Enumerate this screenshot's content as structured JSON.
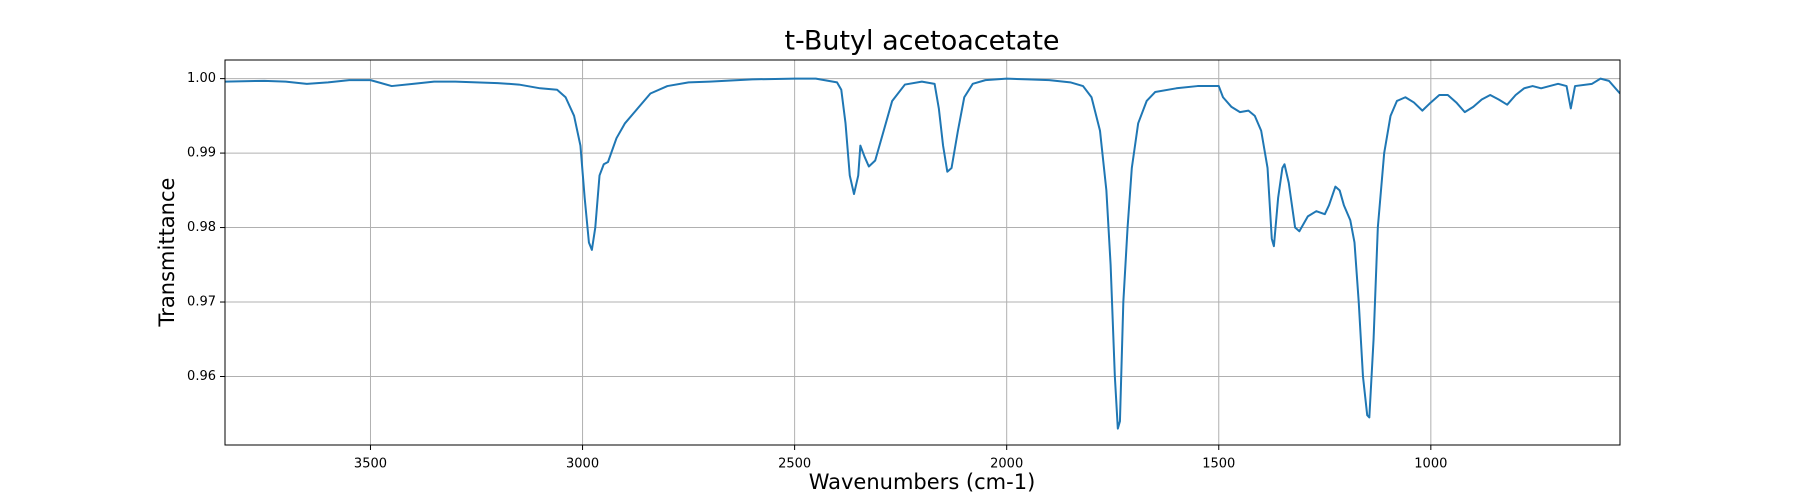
{
  "chart_data": {
    "type": "line",
    "title": "t-Butyl acetoacetate",
    "xlabel": "Wavenumbers (cm-1)",
    "ylabel": "Transmittance",
    "color": "#1f77b4",
    "grid": true,
    "xlim": [
      3843,
      554
    ],
    "ylim": [
      0.9508,
      1.0025
    ],
    "xticks": [
      3500,
      3000,
      2500,
      2000,
      1500,
      1000
    ],
    "yticks": [
      0.96,
      0.97,
      0.98,
      0.99,
      {
        "value": 1,
        "label": "1.00"
      }
    ],
    "x": [
      3843,
      3750,
      3700,
      3650,
      3600,
      3550,
      3500,
      3450,
      3400,
      3350,
      3300,
      3250,
      3200,
      3150,
      3100,
      3060,
      3040,
      3020,
      3005,
      2995,
      2985,
      2978,
      2970,
      2960,
      2950,
      2940,
      2920,
      2900,
      2870,
      2840,
      2800,
      2750,
      2700,
      2600,
      2500,
      2450,
      2400,
      2390,
      2380,
      2370,
      2360,
      2350,
      2345,
      2335,
      2325,
      2310,
      2290,
      2270,
      2240,
      2200,
      2170,
      2160,
      2150,
      2140,
      2130,
      2115,
      2100,
      2080,
      2050,
      2000,
      1950,
      1900,
      1850,
      1820,
      1800,
      1780,
      1765,
      1755,
      1745,
      1738,
      1733,
      1725,
      1715,
      1705,
      1690,
      1670,
      1650,
      1600,
      1550,
      1500,
      1490,
      1470,
      1450,
      1430,
      1415,
      1400,
      1385,
      1375,
      1370,
      1360,
      1350,
      1345,
      1335,
      1320,
      1310,
      1290,
      1270,
      1250,
      1240,
      1225,
      1215,
      1205,
      1190,
      1180,
      1170,
      1160,
      1150,
      1145,
      1135,
      1125,
      1110,
      1095,
      1080,
      1060,
      1040,
      1020,
      1000,
      980,
      960,
      940,
      920,
      900,
      880,
      860,
      840,
      820,
      800,
      780,
      760,
      740,
      700,
      680,
      670,
      660,
      620,
      600,
      580,
      554
    ],
    "values": [
      0.9996,
      0.9997,
      0.9996,
      0.9993,
      0.9995,
      0.9998,
      0.9998,
      0.999,
      0.9993,
      0.9996,
      0.9996,
      0.9995,
      0.9994,
      0.9992,
      0.9987,
      0.9985,
      0.9975,
      0.995,
      0.991,
      0.984,
      0.978,
      0.977,
      0.98,
      0.987,
      0.9885,
      0.9888,
      0.992,
      0.994,
      0.996,
      0.998,
      0.999,
      0.9995,
      0.9996,
      0.9999,
      1.0,
      1.0,
      0.9995,
      0.9985,
      0.994,
      0.987,
      0.9845,
      0.987,
      0.991,
      0.9895,
      0.9882,
      0.989,
      0.993,
      0.997,
      0.9992,
      0.9996,
      0.9993,
      0.996,
      0.991,
      0.9875,
      0.988,
      0.993,
      0.9975,
      0.9993,
      0.9998,
      1.0,
      0.9999,
      0.9998,
      0.9995,
      0.999,
      0.9975,
      0.993,
      0.985,
      0.975,
      0.96,
      0.953,
      0.954,
      0.97,
      0.98,
      0.988,
      0.994,
      0.997,
      0.9982,
      0.9987,
      0.999,
      0.999,
      0.9975,
      0.9962,
      0.9955,
      0.9957,
      0.995,
      0.993,
      0.988,
      0.9785,
      0.9775,
      0.984,
      0.988,
      0.9885,
      0.986,
      0.98,
      0.9795,
      0.9815,
      0.9822,
      0.9818,
      0.983,
      0.9855,
      0.985,
      0.983,
      0.981,
      0.978,
      0.97,
      0.96,
      0.9548,
      0.9545,
      0.965,
      0.98,
      0.99,
      0.995,
      0.997,
      0.9975,
      0.9968,
      0.9957,
      0.9968,
      0.9978,
      0.9978,
      0.9968,
      0.9955,
      0.9962,
      0.9972,
      0.9978,
      0.9972,
      0.9965,
      0.9978,
      0.9987,
      0.999,
      0.9987,
      0.9993,
      0.999,
      0.996,
      0.999,
      0.9993,
      1.0,
      0.9997,
      0.998
    ]
  }
}
